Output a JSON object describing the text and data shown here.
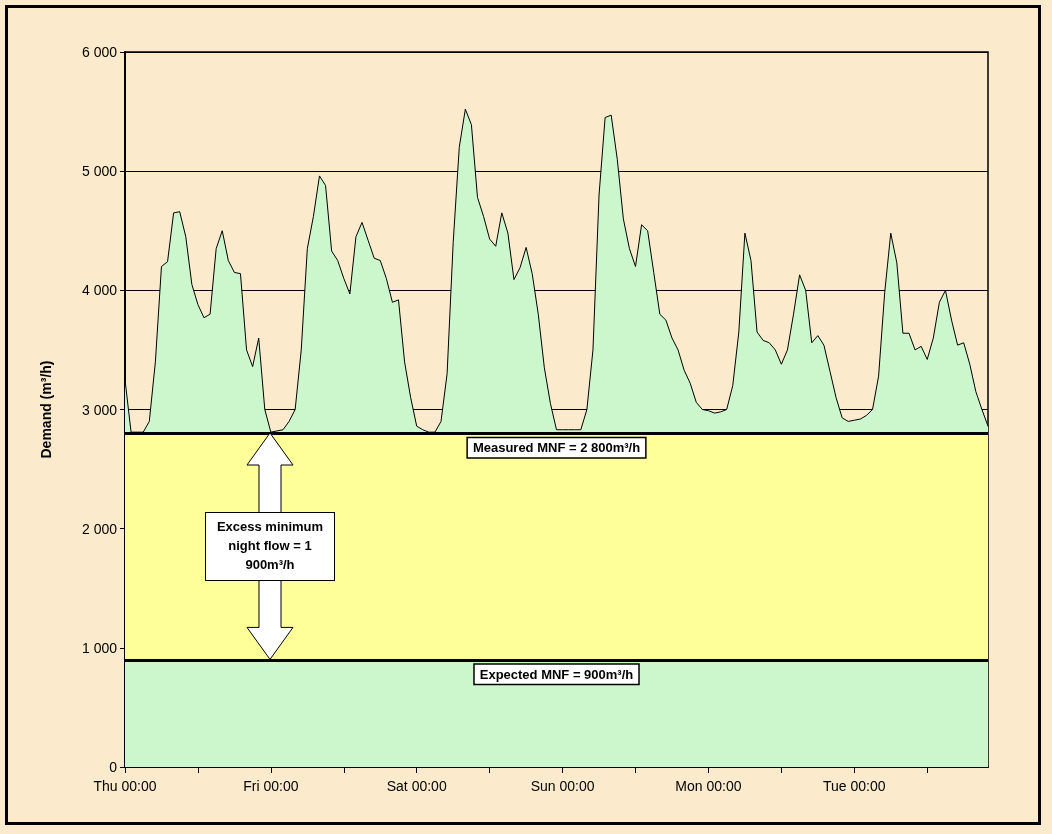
{
  "chart_data": {
    "type": "area",
    "ylabel": "Demand (m³/h)",
    "categories": [
      "Thu 00:00",
      null,
      null,
      null,
      null,
      null,
      null,
      null,
      null,
      null,
      null,
      null,
      null,
      null,
      null,
      null,
      null,
      null,
      null,
      null,
      null,
      null,
      null,
      null,
      "Fri 00:00",
      null,
      null,
      null,
      null,
      null,
      null,
      null,
      null,
      null,
      null,
      null,
      null,
      null,
      null,
      null,
      null,
      null,
      null,
      null,
      null,
      null,
      null,
      null,
      "Sat 00:00",
      null,
      null,
      null,
      null,
      null,
      null,
      null,
      null,
      null,
      null,
      null,
      null,
      null,
      null,
      null,
      null,
      null,
      null,
      null,
      null,
      null,
      null,
      null,
      "Sun 00:00",
      null,
      null,
      null,
      null,
      null,
      null,
      null,
      null,
      null,
      null,
      null,
      null,
      null,
      null,
      null,
      null,
      null,
      null,
      null,
      null,
      null,
      null,
      null,
      "Mon 00:00",
      null,
      null,
      null,
      null,
      null,
      null,
      null,
      null,
      null,
      null,
      null,
      null,
      null,
      null,
      null,
      null,
      null,
      null,
      null,
      null,
      null,
      null,
      null,
      "Tue 00:00",
      null,
      null,
      null,
      null,
      null,
      null,
      null,
      null,
      null,
      null,
      null,
      null,
      null,
      null,
      null,
      null,
      null,
      null,
      null,
      null,
      null,
      null
    ],
    "values": [
      3250,
      2810,
      2810,
      2810,
      2900,
      3400,
      4200,
      4240,
      4650,
      4660,
      4450,
      4050,
      3880,
      3770,
      3800,
      4350,
      4500,
      4250,
      4150,
      4140,
      3500,
      3360,
      3600,
      3000,
      2810,
      2820,
      2830,
      2900,
      3000,
      3500,
      4350,
      4620,
      4960,
      4880,
      4330,
      4250,
      4100,
      3970,
      4450,
      4570,
      4420,
      4270,
      4250,
      4100,
      3900,
      3920,
      3400,
      3100,
      2860,
      2830,
      2810,
      2810,
      2900,
      3300,
      4400,
      5200,
      5520,
      5390,
      4780,
      4620,
      4430,
      4370,
      4650,
      4480,
      4090,
      4190,
      4360,
      4140,
      3800,
      3350,
      3050,
      2830,
      2830,
      2830,
      2830,
      2830,
      3000,
      3500,
      4800,
      5450,
      5470,
      5100,
      4600,
      4350,
      4200,
      4550,
      4500,
      4150,
      3800,
      3750,
      3600,
      3500,
      3330,
      3220,
      3060,
      3000,
      2990,
      2970,
      2980,
      3000,
      3200,
      3650,
      4480,
      4250,
      3650,
      3580,
      3560,
      3500,
      3380,
      3500,
      3800,
      4130,
      4000,
      3560,
      3620,
      3540,
      3320,
      3100,
      2930,
      2900,
      2910,
      2920,
      2950,
      3000,
      3280,
      3980,
      4480,
      4230,
      3640,
      3640,
      3500,
      3530,
      3420,
      3600,
      3900,
      4000,
      3750,
      3540,
      3560,
      3380,
      3150,
      3000,
      2860
    ],
    "color": "#ccf7cc",
    "ylim": [
      0,
      6000
    ],
    "yticks": [
      0,
      {
        "value": 1000,
        "label": "1 000"
      },
      {
        "value": 2000,
        "label": "2 000"
      },
      {
        "value": 3000,
        "label": "3 000"
      },
      {
        "value": 4000,
        "label": "4 000"
      },
      {
        "value": 5000,
        "label": "5 000"
      },
      {
        "value": 6000,
        "label": "6 000"
      }
    ],
    "grid": "y",
    "marker": "none",
    "line_style": "solid",
    "bands": [
      {
        "axis": "y",
        "from": 900,
        "to": 2800,
        "color": "#ffff99"
      }
    ],
    "ref_lines": [
      {
        "axis": "y",
        "value": 2800,
        "label": "Measured MNF = 2 800m³/h",
        "color": "#000000"
      },
      {
        "axis": "y",
        "value": 900,
        "label": "Expected MNF = 900m³/h",
        "color": "#000000"
      }
    ],
    "annotations": [
      "Excess minimum night flow = 1 900m³/h"
    ]
  }
}
